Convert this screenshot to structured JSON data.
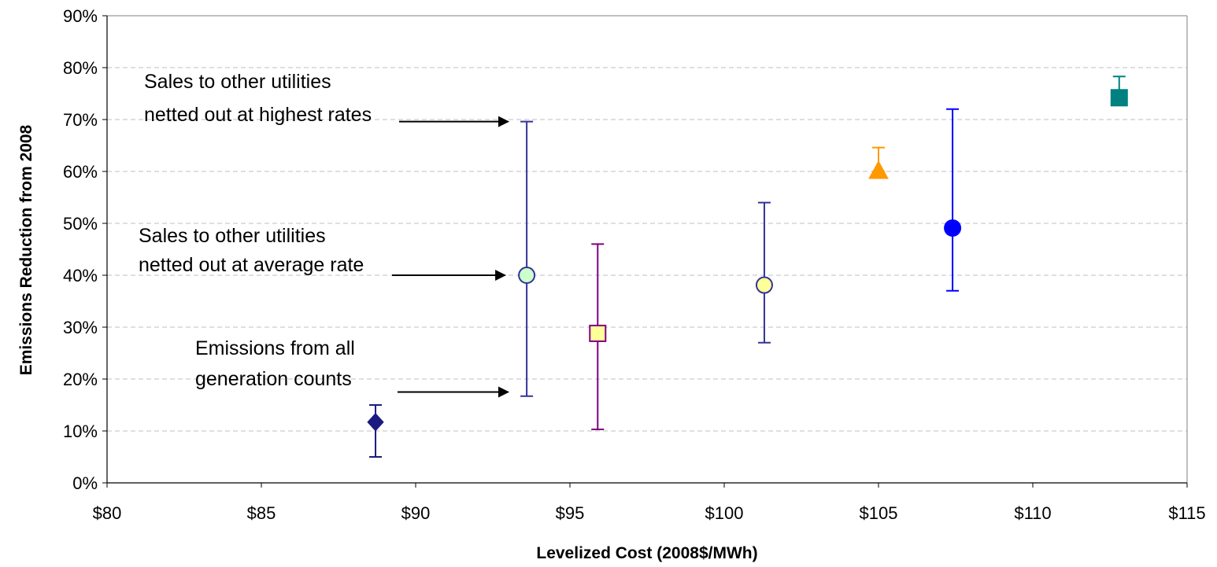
{
  "chart_data": {
    "type": "scatter",
    "xlabel": "Levelized Cost (2008$/MWh)",
    "ylabel": "Emissions Reduction from 2008",
    "xlim": [
      80,
      115
    ],
    "ylim": [
      0,
      90
    ],
    "x_ticks": [
      80,
      85,
      90,
      95,
      100,
      105,
      110,
      115
    ],
    "x_tick_labels": [
      "$80",
      "$85",
      "$90",
      "$95",
      "$100",
      "$105",
      "$110",
      "$115"
    ],
    "y_ticks": [
      0,
      10,
      20,
      30,
      40,
      50,
      60,
      70,
      80,
      90
    ],
    "y_tick_labels": [
      "0%",
      "10%",
      "20%",
      "30%",
      "40%",
      "50%",
      "60%",
      "70%",
      "80%",
      "90%"
    ],
    "grid": "horizontal dashed",
    "points": [
      {
        "x": 88.7,
        "y": 11.7,
        "low": 5,
        "high": 15,
        "marker": "diamond",
        "fill": "#1a1a80",
        "stroke": "#1a1a80",
        "bar_color": "#1a1a80"
      },
      {
        "x": 93.6,
        "y": 40,
        "low": 16.7,
        "high": 69.6,
        "marker": "circle",
        "fill": "#ccffcc",
        "stroke": "#333399",
        "bar_color": "#333399"
      },
      {
        "x": 95.9,
        "y": 28.8,
        "low": 10.3,
        "high": 46,
        "marker": "square",
        "fill": "#ffff99",
        "stroke": "#800080",
        "bar_color": "#800080"
      },
      {
        "x": 101.3,
        "y": 38.1,
        "low": 27,
        "high": 54,
        "marker": "circle",
        "fill": "#ffff99",
        "stroke": "#333399",
        "bar_color": "#333399"
      },
      {
        "x": 105,
        "y": 60,
        "low": 60,
        "high": 64.6,
        "marker": "triangle",
        "fill": "#ff9900",
        "stroke": "#ff9900",
        "bar_color": "#ff9900"
      },
      {
        "x": 107.4,
        "y": 49.1,
        "low": 37,
        "high": 72,
        "marker": "circle",
        "fill": "#0000ff",
        "stroke": "#0000ff",
        "bar_color": "#0000ff"
      },
      {
        "x": 112.8,
        "y": 74.2,
        "low": 74.2,
        "high": 78.3,
        "marker": "square",
        "fill": "#008080",
        "stroke": "#008080",
        "bar_color": "#008080"
      }
    ],
    "annotations": [
      {
        "lines": [
          "Sales to other utilities",
          "netted out at highest rates"
        ],
        "arrow_to": {
          "x": 93.0,
          "y": 69.6
        }
      },
      {
        "lines": [
          "Sales to other utilities",
          "netted out at average rate"
        ],
        "arrow_to": {
          "x": 92.9,
          "y": 40
        }
      },
      {
        "lines": [
          "Emissions from all",
          "generation counts"
        ],
        "arrow_to": {
          "x": 93.0,
          "y": 17.5
        }
      }
    ]
  }
}
